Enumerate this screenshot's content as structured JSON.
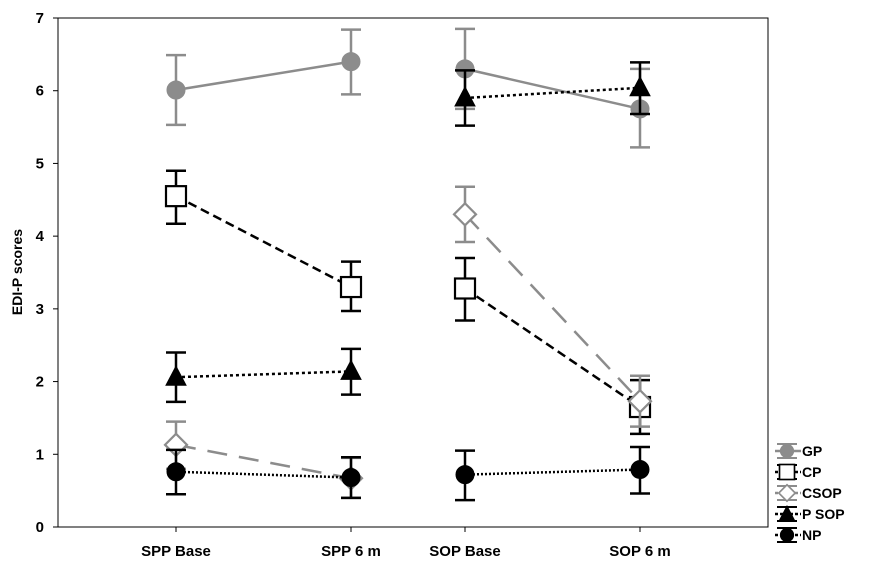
{
  "chart_data": {
    "type": "line",
    "ylabel": "EDI-P scores",
    "xlabel": "",
    "ylim": [
      0,
      7
    ],
    "yticks": [
      0,
      1,
      2,
      3,
      4,
      5,
      6,
      7
    ],
    "categories": [
      "SPP Base",
      "SPP 6 m",
      "SOP Base",
      "SOP 6 m"
    ],
    "legend_position": "bottom-right",
    "grid": false,
    "series": [
      {
        "name": "GP",
        "color": "#8c8c8c",
        "marker": "circle-filled",
        "line": "solid",
        "segments": [
          {
            "points": [
              {
                "x": "SPP Base",
                "y": 6.01,
                "lo": 5.53,
                "hi": 6.49
              },
              {
                "x": "SPP 6 m",
                "y": 6.4,
                "lo": 5.95,
                "hi": 6.84
              }
            ]
          },
          {
            "points": [
              {
                "x": "SOP Base",
                "y": 6.3,
                "lo": 5.75,
                "hi": 6.85
              },
              {
                "x": "SOP 6 m",
                "y": 5.75,
                "lo": 5.22,
                "hi": 6.3
              }
            ]
          }
        ]
      },
      {
        "name": "CP",
        "color": "#000000",
        "marker": "square-open",
        "line": "dashed",
        "segments": [
          {
            "points": [
              {
                "x": "SPP Base",
                "y": 4.55,
                "lo": 4.17,
                "hi": 4.9
              },
              {
                "x": "SPP 6 m",
                "y": 3.3,
                "lo": 2.97,
                "hi": 3.65
              }
            ]
          },
          {
            "points": [
              {
                "x": "SOP Base",
                "y": 3.28,
                "lo": 2.84,
                "hi": 3.7
              },
              {
                "x": "SOP 6 m",
                "y": 1.65,
                "lo": 1.28,
                "hi": 2.02
              }
            ]
          }
        ]
      },
      {
        "name": "CSOP",
        "color": "#8c8c8c",
        "marker": "diamond-open",
        "line": "longdash",
        "segments": [
          {
            "points": [
              {
                "x": "SPP Base",
                "y": 1.13,
                "lo": 0.8,
                "hi": 1.45
              },
              {
                "x": "SPP 6 m",
                "y": 0.67,
                "lo": 0.4,
                "hi": 0.95
              }
            ]
          },
          {
            "points": [
              {
                "x": "SOP Base",
                "y": 4.3,
                "lo": 3.92,
                "hi": 4.68
              },
              {
                "x": "SOP 6 m",
                "y": 1.73,
                "lo": 1.38,
                "hi": 2.08
              }
            ]
          }
        ]
      },
      {
        "name": "P SOP",
        "color": "#000000",
        "marker": "triangle-filled",
        "line": "dotted",
        "segments": [
          {
            "points": [
              {
                "x": "SPP Base",
                "y": 2.06,
                "lo": 1.72,
                "hi": 2.4
              },
              {
                "x": "SPP 6 m",
                "y": 2.14,
                "lo": 1.82,
                "hi": 2.45
              }
            ]
          },
          {
            "points": [
              {
                "x": "SOP Base",
                "y": 5.9,
                "lo": 5.52,
                "hi": 6.28
              },
              {
                "x": "SOP 6 m",
                "y": 6.04,
                "lo": 5.68,
                "hi": 6.39
              }
            ]
          }
        ]
      },
      {
        "name": "NP",
        "color": "#000000",
        "marker": "circle-filled",
        "line": "finedotted",
        "segments": [
          {
            "points": [
              {
                "x": "SPP Base",
                "y": 0.76,
                "lo": 0.45,
                "hi": 1.06
              },
              {
                "x": "SPP 6 m",
                "y": 0.68,
                "lo": 0.4,
                "hi": 0.96
              }
            ]
          },
          {
            "points": [
              {
                "x": "SOP Base",
                "y": 0.72,
                "lo": 0.37,
                "hi": 1.05
              },
              {
                "x": "SOP 6 m",
                "y": 0.79,
                "lo": 0.46,
                "hi": 1.1
              }
            ]
          }
        ]
      }
    ]
  }
}
